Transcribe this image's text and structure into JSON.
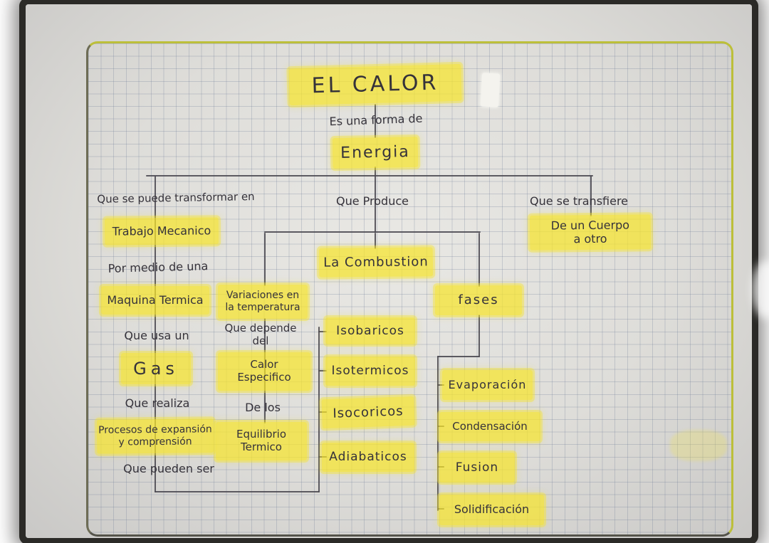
{
  "palette": {
    "highlight": "#f6e42b",
    "ink": "#35323a",
    "connector": "#4a4850",
    "grid_line": "#8e9ab3",
    "paper": "#e4e3df",
    "frame_border": "#bcbf3a",
    "backdrop": "#2b2a27"
  },
  "diagram": {
    "title": "EL CALOR",
    "nodes": [
      {
        "id": "title",
        "text": "EL CALOR",
        "type": "highlight"
      },
      {
        "id": "forma_label",
        "text": "Es una forma de",
        "type": "label"
      },
      {
        "id": "energia",
        "text": "Energia",
        "type": "highlight"
      },
      {
        "id": "branch1_label",
        "text": "Que se puede transformar en",
        "type": "label"
      },
      {
        "id": "trabajo",
        "text": "Trabajo Mecanico",
        "type": "highlight"
      },
      {
        "id": "medio_label",
        "text": "Por medio de una",
        "type": "label"
      },
      {
        "id": "maquina",
        "text": "Maquina Termica",
        "type": "highlight"
      },
      {
        "id": "usa_label",
        "text": "Que usa un",
        "type": "label"
      },
      {
        "id": "gas",
        "text": "Gas",
        "type": "highlight"
      },
      {
        "id": "realiza_label",
        "text": "Que realiza",
        "type": "label"
      },
      {
        "id": "procesos",
        "text": "Procesos de expansión\ny comprensión",
        "type": "highlight"
      },
      {
        "id": "pueden_label",
        "text": "Que pueden ser",
        "type": "label"
      },
      {
        "id": "variaciones",
        "text": "Variaciones en\nla temperatura",
        "type": "highlight"
      },
      {
        "id": "depende_label",
        "text": "Que depende del",
        "type": "label"
      },
      {
        "id": "calor_especifico",
        "text": "Calor\nEspecifico",
        "type": "highlight"
      },
      {
        "id": "delos_label",
        "text": "De los",
        "type": "label"
      },
      {
        "id": "equilibrio",
        "text": "Equilibrio\nTermico",
        "type": "highlight"
      },
      {
        "id": "produce_label",
        "text": "Que Produce",
        "type": "label"
      },
      {
        "id": "combustion",
        "text": "La Combustion",
        "type": "highlight"
      },
      {
        "id": "isobaricos",
        "text": "Isobaricos",
        "type": "highlight"
      },
      {
        "id": "isotermicos",
        "text": "Isotermicos",
        "type": "highlight"
      },
      {
        "id": "isocoricos",
        "text": "Isocoricos",
        "type": "highlight"
      },
      {
        "id": "adiabaticos",
        "text": "Adiabaticos",
        "type": "highlight"
      },
      {
        "id": "transfiere_label",
        "text": "Que se transfiere",
        "type": "label"
      },
      {
        "id": "cuerpo",
        "text": "De un Cuerpo\na otro",
        "type": "highlight"
      },
      {
        "id": "fases",
        "text": "fases",
        "type": "highlight"
      },
      {
        "id": "evaporacion",
        "text": "Evaporación",
        "type": "highlight"
      },
      {
        "id": "condensacion",
        "text": "Condensación",
        "type": "highlight"
      },
      {
        "id": "fusion",
        "text": "Fusion",
        "type": "highlight"
      },
      {
        "id": "solidificacion",
        "text": "Solidificación",
        "type": "highlight"
      }
    ]
  }
}
